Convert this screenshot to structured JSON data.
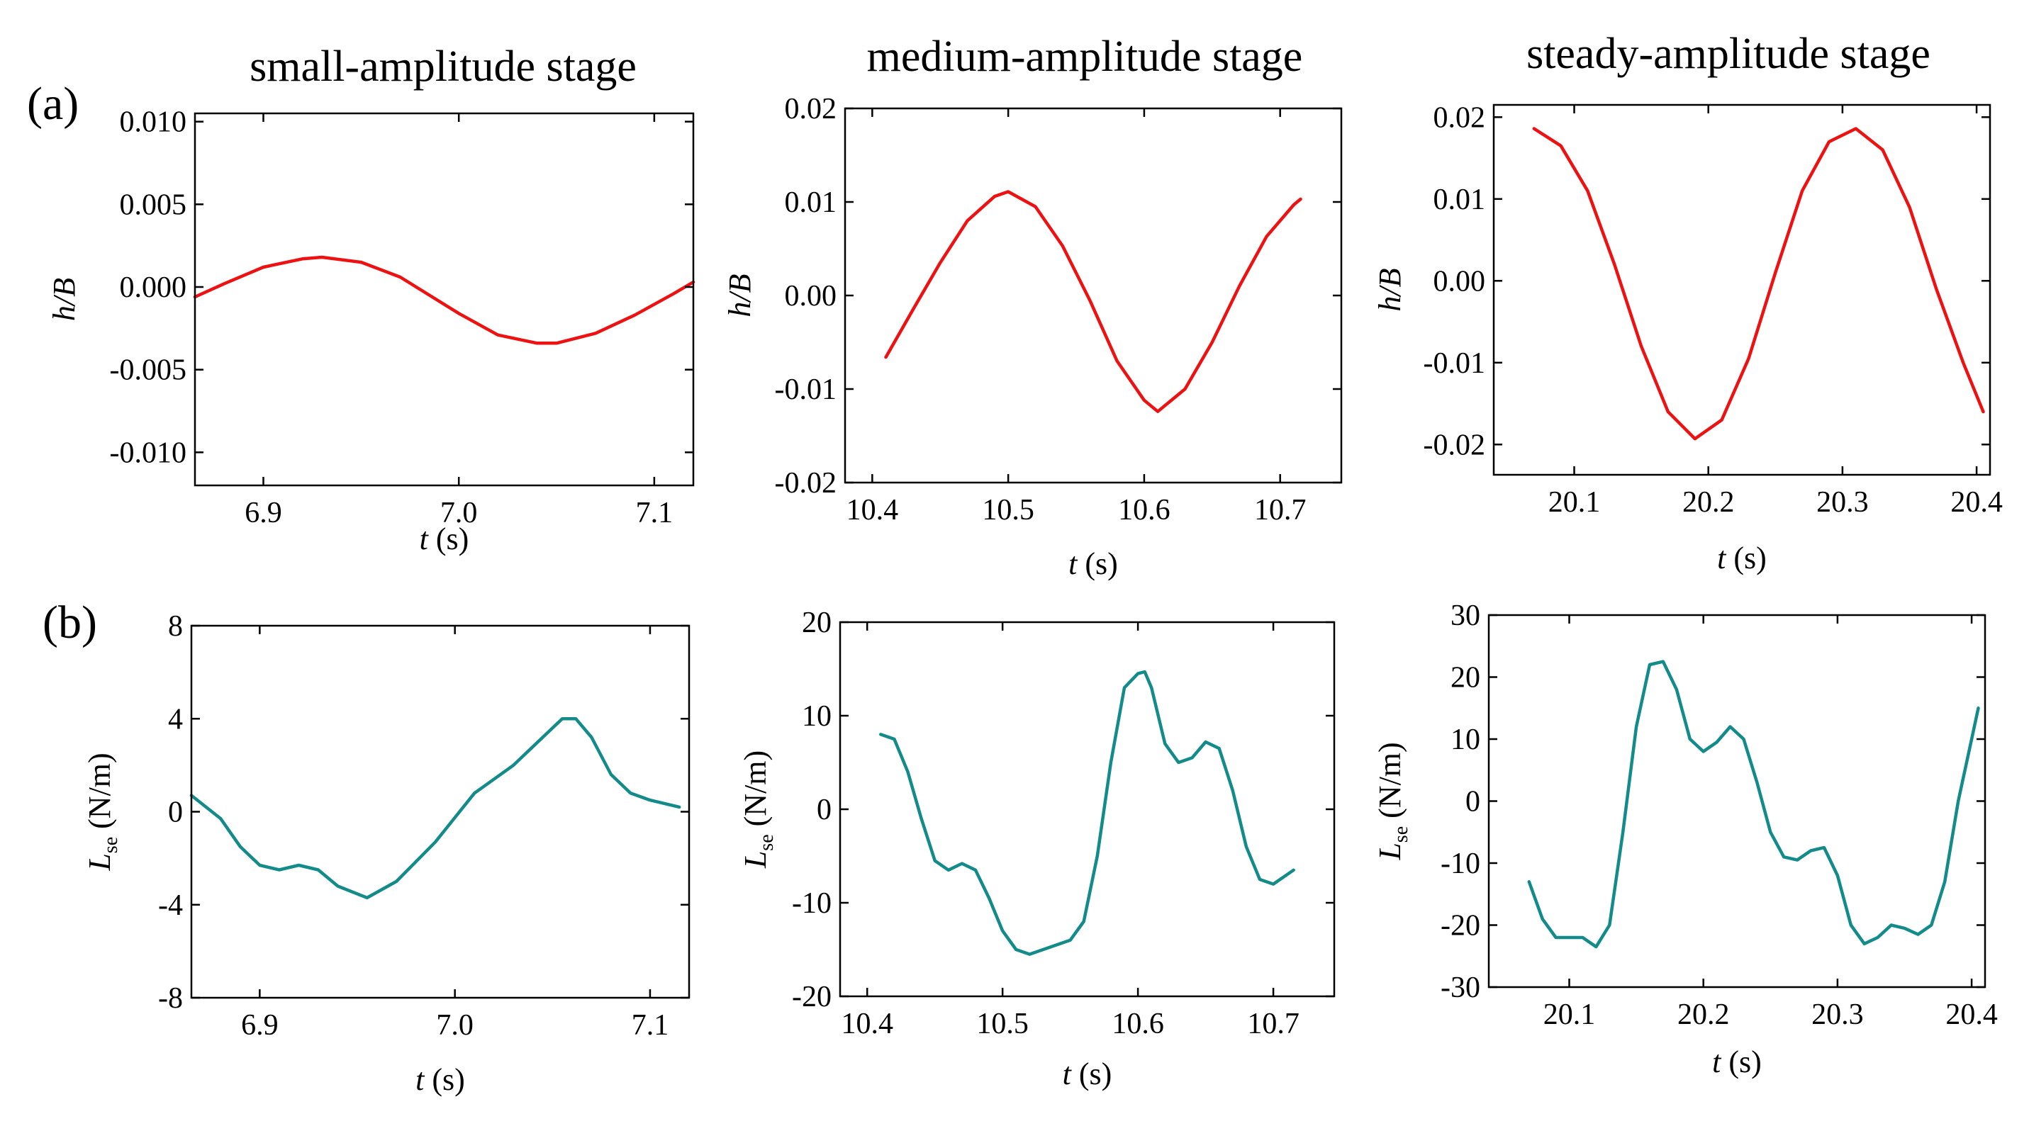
{
  "figure": {
    "row_labels": [
      "(a)",
      "(b)"
    ],
    "column_titles": [
      "small-amplitude stage",
      "medium-amplitude stage",
      "steady-amplitude stage"
    ],
    "colors": {
      "row_a_line": "#ee1111",
      "row_b_line": "#138b8b",
      "axis": "#000000"
    }
  },
  "chart_data": [
    {
      "type": "line",
      "panel": "a1",
      "title": "small-amplitude stage",
      "xlabel_var": "t",
      "xlabel_unit": " (s)",
      "ylabel_var": "h/B",
      "ylabel_sub": "",
      "ylabel_unit": "",
      "xlim": [
        6.865,
        7.12
      ],
      "ylim": [
        -0.012,
        0.0105
      ],
      "xticks": [
        6.9,
        7.0,
        7.1
      ],
      "xtick_labels": [
        "6.9",
        "7.0",
        "7.1"
      ],
      "yticks": [
        0.01,
        0.005,
        0.0,
        -0.005,
        -0.01
      ],
      "ytick_labels": [
        "0.010",
        "0.005",
        "0.000",
        "-0.005",
        "-0.010"
      ],
      "series": [
        {
          "name": "h/B",
          "color": "#ee1111",
          "x": [
            6.865,
            6.88,
            6.9,
            6.92,
            6.93,
            6.95,
            6.97,
            7.0,
            7.02,
            7.04,
            7.05,
            7.07,
            7.09,
            7.11,
            7.12
          ],
          "y": [
            -0.0006,
            0.0002,
            0.0012,
            0.0017,
            0.0018,
            0.0015,
            0.0006,
            -0.0016,
            -0.0029,
            -0.0034,
            -0.0034,
            -0.0028,
            -0.0017,
            -0.0004,
            0.0003
          ]
        }
      ]
    },
    {
      "type": "line",
      "panel": "a2",
      "title": "medium-amplitude stage",
      "xlabel_var": "t",
      "xlabel_unit": " (s)",
      "ylabel_var": "h/B",
      "ylabel_sub": "",
      "ylabel_unit": "",
      "xlim": [
        10.38,
        10.745
      ],
      "ylim": [
        -0.02,
        0.02
      ],
      "xticks": [
        10.4,
        10.5,
        10.6,
        10.7
      ],
      "xtick_labels": [
        "10.4",
        "10.5",
        "10.6",
        "10.7"
      ],
      "yticks": [
        0.02,
        0.01,
        0.0,
        -0.01,
        -0.02
      ],
      "ytick_labels": [
        "0.02",
        "0.01",
        "0.00",
        "-0.01",
        "-0.02"
      ],
      "series": [
        {
          "name": "h/B",
          "color": "#ee1111",
          "x": [
            10.41,
            10.43,
            10.45,
            10.47,
            10.49,
            10.5,
            10.52,
            10.54,
            10.56,
            10.58,
            10.6,
            10.61,
            10.63,
            10.65,
            10.67,
            10.69,
            10.71,
            10.715
          ],
          "y": [
            -0.0066,
            -0.0015,
            0.0035,
            0.008,
            0.0106,
            0.0111,
            0.0095,
            0.0053,
            -0.0005,
            -0.007,
            -0.0112,
            -0.0124,
            -0.01,
            -0.005,
            0.001,
            0.0063,
            0.0097,
            0.0103
          ]
        }
      ]
    },
    {
      "type": "line",
      "panel": "a3",
      "title": "steady-amplitude stage",
      "xlabel_var": "t",
      "xlabel_unit": " (s)",
      "ylabel_var": "h/B",
      "ylabel_sub": "",
      "ylabel_unit": "",
      "xlim": [
        20.04,
        20.41
      ],
      "ylim": [
        -0.0237,
        0.0215
      ],
      "xticks": [
        20.1,
        20.2,
        20.3,
        20.4
      ],
      "xtick_labels": [
        "20.1",
        "20.2",
        "20.3",
        "20.4"
      ],
      "yticks": [
        0.02,
        0.01,
        0.0,
        -0.01,
        -0.02
      ],
      "ytick_labels": [
        "0.02",
        "0.01",
        "0.00",
        "-0.01",
        "-0.02"
      ],
      "series": [
        {
          "name": "h/B",
          "color": "#ee1111",
          "x": [
            20.07,
            20.09,
            20.11,
            20.13,
            20.15,
            20.17,
            20.19,
            20.21,
            20.23,
            20.25,
            20.27,
            20.29,
            20.31,
            20.33,
            20.35,
            20.37,
            20.39,
            20.405
          ],
          "y": [
            0.0186,
            0.0165,
            0.011,
            0.002,
            -0.008,
            -0.016,
            -0.0193,
            -0.017,
            -0.0095,
            0.001,
            0.011,
            0.017,
            0.0186,
            0.016,
            0.009,
            -0.001,
            -0.01,
            -0.016
          ]
        }
      ]
    },
    {
      "type": "line",
      "panel": "b1",
      "title": "",
      "xlabel_var": "t",
      "xlabel_unit": " (s)",
      "ylabel_var": "L",
      "ylabel_sub": "se",
      "ylabel_unit": " (N/m)",
      "xlim": [
        6.865,
        7.12
      ],
      "ylim": [
        -8,
        8
      ],
      "xticks": [
        6.9,
        7.0,
        7.1
      ],
      "xtick_labels": [
        "6.9",
        "7.0",
        "7.1"
      ],
      "yticks": [
        8,
        4,
        0,
        -4,
        -8
      ],
      "ytick_labels": [
        "8",
        "4",
        "0",
        "-4",
        "-8"
      ],
      "series": [
        {
          "name": "Lse",
          "color": "#138b8b",
          "x": [
            6.865,
            6.88,
            6.89,
            6.9,
            6.91,
            6.92,
            6.93,
            6.94,
            6.955,
            6.97,
            6.99,
            7.01,
            7.03,
            7.045,
            7.055,
            7.062,
            7.07,
            7.08,
            7.09,
            7.1,
            7.115
          ],
          "y": [
            0.7,
            -0.3,
            -1.5,
            -2.3,
            -2.5,
            -2.3,
            -2.5,
            -3.2,
            -3.7,
            -3.0,
            -1.3,
            0.8,
            2.0,
            3.2,
            4.0,
            4.0,
            3.2,
            1.6,
            0.8,
            0.5,
            0.2
          ]
        }
      ]
    },
    {
      "type": "line",
      "panel": "b2",
      "title": "",
      "xlabel_var": "t",
      "xlabel_unit": " (s)",
      "ylabel_var": "L",
      "ylabel_sub": "se",
      "ylabel_unit": " (N/m)",
      "xlim": [
        10.38,
        10.745
      ],
      "ylim": [
        -20,
        20
      ],
      "xticks": [
        10.4,
        10.5,
        10.6,
        10.7
      ],
      "xtick_labels": [
        "10.4",
        "10.5",
        "10.6",
        "10.7"
      ],
      "yticks": [
        20,
        10,
        0,
        -10,
        -20
      ],
      "ytick_labels": [
        "20",
        "10",
        "0",
        "-10",
        "-20"
      ],
      "series": [
        {
          "name": "Lse",
          "color": "#138b8b",
          "x": [
            10.41,
            10.42,
            10.43,
            10.44,
            10.45,
            10.46,
            10.47,
            10.48,
            10.49,
            10.5,
            10.51,
            10.52,
            10.53,
            10.55,
            10.56,
            10.57,
            10.58,
            10.59,
            10.6,
            10.605,
            10.61,
            10.62,
            10.63,
            10.64,
            10.65,
            10.66,
            10.67,
            10.68,
            10.69,
            10.7,
            10.715
          ],
          "y": [
            8,
            7.5,
            4,
            -1,
            -5.5,
            -6.5,
            -5.8,
            -6.5,
            -9.5,
            -13,
            -15,
            -15.5,
            -15,
            -14,
            -12,
            -5,
            5,
            13,
            14.5,
            14.7,
            13,
            7,
            5,
            5.5,
            7.2,
            6.5,
            2,
            -4,
            -7.5,
            -8,
            -6.5
          ]
        }
      ]
    },
    {
      "type": "line",
      "panel": "b3",
      "title": "",
      "xlabel_var": "t",
      "xlabel_unit": " (s)",
      "ylabel_var": "L",
      "ylabel_sub": "se",
      "ylabel_unit": " (N/m)",
      "xlim": [
        20.04,
        20.41
      ],
      "ylim": [
        -30,
        30
      ],
      "xticks": [
        20.1,
        20.2,
        20.3,
        20.4
      ],
      "xtick_labels": [
        "20.1",
        "20.2",
        "20.3",
        "20.4"
      ],
      "yticks": [
        30,
        20,
        10,
        0,
        -10,
        -20,
        -30
      ],
      "ytick_labels": [
        "30",
        "20",
        "10",
        "0",
        "-10",
        "-20",
        "-30"
      ],
      "series": [
        {
          "name": "Lse",
          "color": "#138b8b",
          "x": [
            20.07,
            20.08,
            20.09,
            20.1,
            20.11,
            20.12,
            20.13,
            20.14,
            20.15,
            20.16,
            20.17,
            20.18,
            20.19,
            20.2,
            20.21,
            20.22,
            20.23,
            20.24,
            20.25,
            20.26,
            20.27,
            20.28,
            20.29,
            20.3,
            20.31,
            20.32,
            20.33,
            20.34,
            20.35,
            20.36,
            20.37,
            20.38,
            20.39,
            20.4,
            20.405
          ],
          "y": [
            -13,
            -19,
            -22,
            -22,
            -22,
            -23.5,
            -20,
            -5,
            12,
            22,
            22.5,
            18,
            10,
            8,
            9.5,
            12,
            10,
            3,
            -5,
            -9,
            -9.5,
            -8,
            -7.5,
            -12,
            -20,
            -23,
            -22,
            -20,
            -20.5,
            -21.5,
            -20,
            -13,
            0,
            10,
            15
          ]
        }
      ]
    }
  ]
}
